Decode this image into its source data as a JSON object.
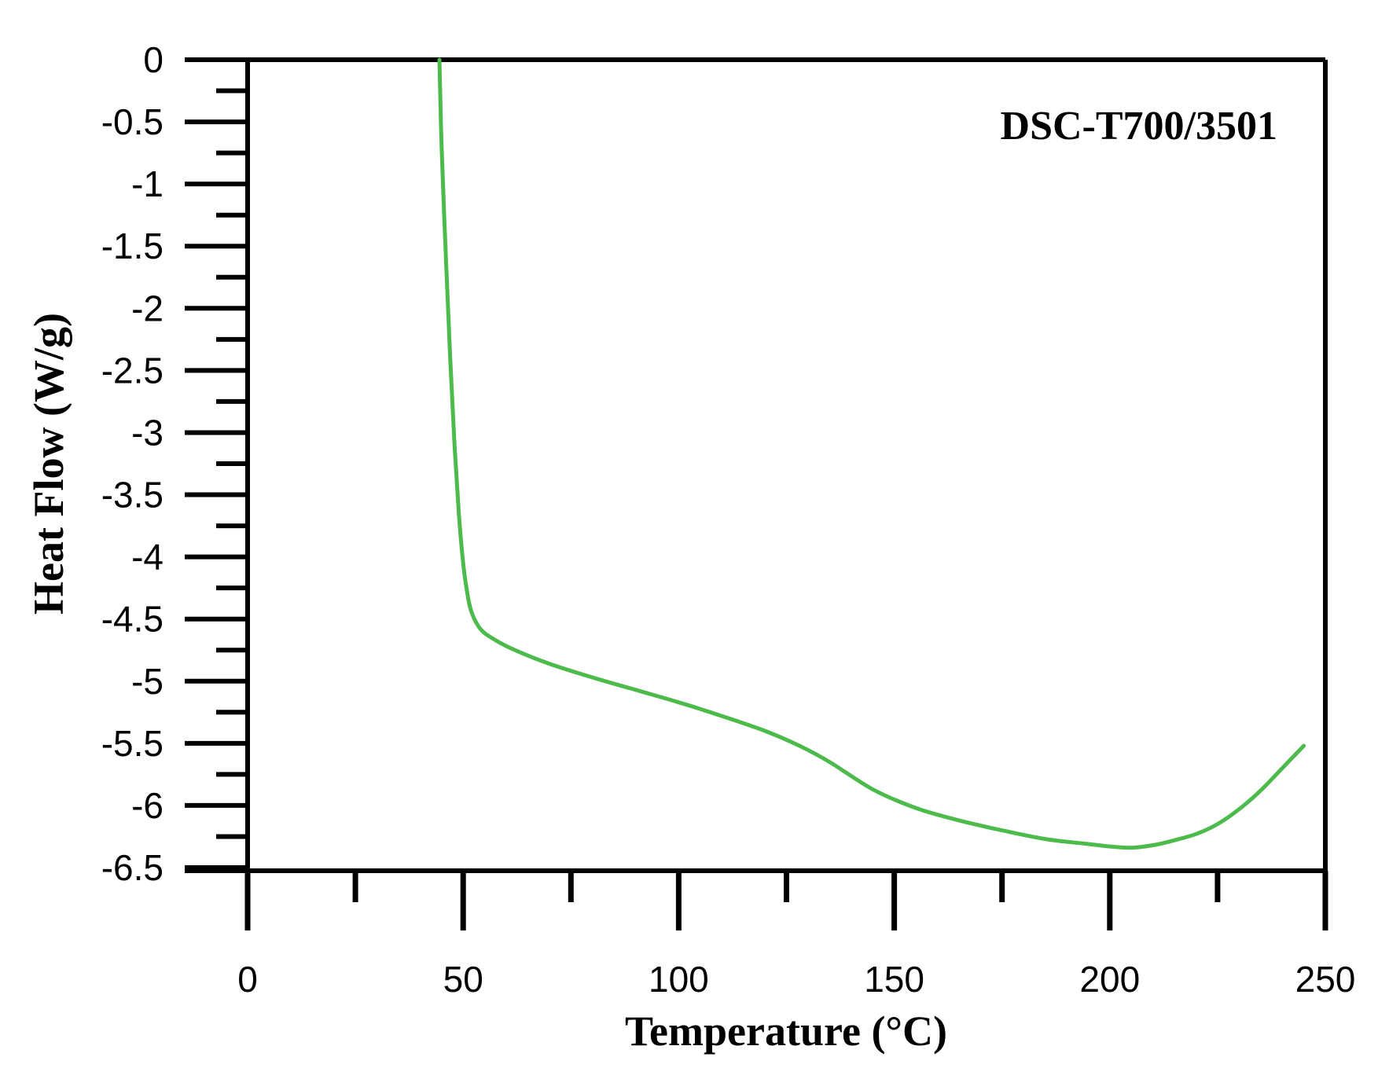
{
  "chart_data": {
    "type": "line",
    "xlabel": "Temperature  (°C)",
    "ylabel": "Heat Flow (W/g)",
    "annotation": "DSC-T700/3501",
    "xlim": [
      0,
      250
    ],
    "ylim": [
      -6.5,
      0
    ],
    "x_ticks": [
      0,
      50,
      100,
      150,
      200,
      250
    ],
    "x_minor_ticks": [
      25,
      75,
      125,
      175,
      225
    ],
    "y_ticks": [
      0,
      -0.5,
      -1,
      -1.5,
      -2,
      -2.5,
      -3,
      -3.5,
      -4,
      -4.5,
      -5,
      -5.5,
      -6,
      -6.5
    ],
    "y_tick_labels": [
      "0",
      "-0.5",
      "-1",
      "-1.5",
      "-2",
      "-2.5",
      "-3",
      "-3.5",
      "-4",
      "-4.5",
      "-5",
      "-5.5",
      "-6",
      "-6.5"
    ],
    "grid": false,
    "series": [
      {
        "color": "#4cbb4c",
        "x": [
          44.5,
          45,
          46,
          47,
          48,
          49,
          50,
          51,
          52,
          54,
          57,
          62,
          70,
          80,
          90,
          100,
          110,
          120,
          128,
          135,
          145,
          155,
          165,
          175,
          185,
          195,
          200,
          205,
          210,
          215,
          220,
          225,
          230,
          235,
          240,
          245
        ],
        "y": [
          0,
          -0.7,
          -1.6,
          -2.4,
          -3.1,
          -3.65,
          -4.05,
          -4.3,
          -4.45,
          -4.58,
          -4.66,
          -4.75,
          -4.86,
          -4.97,
          -5.07,
          -5.17,
          -5.28,
          -5.4,
          -5.52,
          -5.65,
          -5.87,
          -6.02,
          -6.12,
          -6.2,
          -6.27,
          -6.31,
          -6.33,
          -6.34,
          -6.32,
          -6.28,
          -6.23,
          -6.15,
          -6.03,
          -5.88,
          -5.7,
          -5.52
        ]
      }
    ]
  }
}
